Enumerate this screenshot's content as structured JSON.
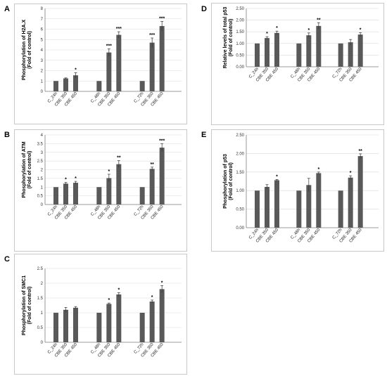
{
  "colors": {
    "bar": "#595959",
    "grid": "#d9d9d9",
    "axis": "#808080",
    "frame": "#c8c8c8"
  },
  "chart_data": [
    {
      "panel": "A",
      "type": "bar",
      "ylabel": "Phosphorylation of H2A.X",
      "ylabel2": "(Fold of control)",
      "ylim": [
        0,
        8
      ],
      "ticks": [
        "0",
        "1",
        "2",
        "3",
        "4",
        "5",
        "6",
        "7",
        "8"
      ],
      "tick_values": [
        0,
        1,
        2,
        3,
        4,
        5,
        6,
        7,
        8
      ],
      "grid": true,
      "categories": [
        "C_24h",
        "CBE 350",
        "CBE 450",
        "C_48h",
        "CBE 350",
        "CBE 450",
        "C_72h",
        "CBE 350",
        "CBE 450"
      ],
      "values": [
        1.0,
        1.25,
        1.55,
        1.0,
        3.75,
        5.45,
        1.0,
        4.7,
        6.3
      ],
      "errors": [
        0,
        0.05,
        0.25,
        0,
        0.35,
        0.3,
        0,
        0.45,
        0.45
      ],
      "significance": [
        "",
        "",
        "*",
        "",
        "***",
        "***",
        "",
        "***",
        "***"
      ]
    },
    {
      "panel": "B",
      "type": "bar",
      "ylabel": "Phosphorylation of ATM",
      "ylabel2": "(Fold of control)",
      "ylim": [
        0,
        4
      ],
      "ticks": [
        "0",
        "0.5",
        "1",
        "1.5",
        "2",
        "2.5",
        "3",
        "3.5",
        "4"
      ],
      "tick_values": [
        0,
        0.5,
        1,
        1.5,
        2,
        2.5,
        3,
        3.5,
        4
      ],
      "grid": true,
      "categories": [
        "C_24h",
        "CBE 350",
        "CBE 450",
        "C_48h",
        "CBE 350",
        "CBE 450",
        "C_72h",
        "CBE 350",
        "CBE 450"
      ],
      "values": [
        1.0,
        1.2,
        1.25,
        1.0,
        1.52,
        2.32,
        1.0,
        2.05,
        3.27
      ],
      "errors": [
        0,
        0.07,
        0.08,
        0,
        0.22,
        0.2,
        0,
        0.1,
        0.22
      ],
      "significance": [
        "",
        "*",
        "*",
        "",
        "*",
        "**",
        "",
        "**",
        "***"
      ]
    },
    {
      "panel": "C",
      "type": "bar",
      "ylabel": "Phosphorylation of SMC1",
      "ylabel2": "(Fold of control)",
      "ylim": [
        0,
        2.5
      ],
      "ticks": [
        "0",
        "0.5",
        "1",
        "1.5",
        "2",
        "2.5"
      ],
      "tick_values": [
        0,
        0.5,
        1,
        1.5,
        2,
        2.5
      ],
      "grid": true,
      "categories": [
        "C_24h",
        "CBE 350",
        "CBE 450",
        "C_48h",
        "CBE 350",
        "CBE 450",
        "C_72h",
        "CBE 350",
        "CBE 450"
      ],
      "values": [
        1.0,
        1.1,
        1.17,
        1.0,
        1.3,
        1.62,
        1.0,
        1.38,
        1.8
      ],
      "errors": [
        0,
        0.08,
        0.04,
        0,
        0.03,
        0.06,
        0,
        0.05,
        0.12
      ],
      "significance": [
        "",
        "",
        "",
        "",
        "*",
        "*",
        "",
        "*",
        "*"
      ]
    },
    {
      "panel": "D",
      "type": "bar",
      "ylabel": "Relative levels of  total p53",
      "ylabel2": "(Fold of control)",
      "ylim": [
        0,
        2.5
      ],
      "ticks": [
        "0.00",
        "0.50",
        "1.00",
        "1.50",
        "2.00",
        "2.50"
      ],
      "tick_values": [
        0,
        0.5,
        1,
        1.5,
        2,
        2.5
      ],
      "grid": true,
      "categories": [
        "C_24h",
        "CBE 350",
        "CBE 450",
        "C_48h",
        "CBE 350",
        "CBE 450",
        "C_72h",
        "CBE 350",
        "CBE 450"
      ],
      "values": [
        1.0,
        1.23,
        1.45,
        1.0,
        1.35,
        1.75,
        1.0,
        1.05,
        1.38
      ],
      "errors": [
        0,
        0.06,
        0.08,
        0,
        0.1,
        0.14,
        0,
        0.12,
        0.08
      ],
      "significance": [
        "",
        "*",
        "*",
        "",
        "*",
        "**",
        "",
        "",
        "*"
      ]
    },
    {
      "panel": "E",
      "type": "bar",
      "ylabel": "Phosphorylation of p53",
      "ylabel2": "(Fold of control)",
      "ylim": [
        0,
        2.5
      ],
      "ticks": [
        "0.00",
        "0.50",
        "1.00",
        "1.50",
        "2.00",
        "2.50"
      ],
      "tick_values": [
        0,
        0.5,
        1,
        1.5,
        2,
        2.5
      ],
      "grid": true,
      "categories": [
        "C_24h",
        "CBE 350",
        "CBE 450",
        "C_48h",
        "CBE 350",
        "CBE 450",
        "C_72h",
        "CBE 350",
        "CBE 450"
      ],
      "values": [
        1.0,
        1.1,
        1.28,
        1.0,
        1.15,
        1.47,
        1.0,
        1.35,
        1.93
      ],
      "errors": [
        0,
        0.06,
        0.02,
        0,
        0.18,
        0.03,
        0,
        0.05,
        0.06
      ],
      "significance": [
        "",
        "",
        "*",
        "",
        "",
        "*",
        "",
        "*",
        "**"
      ]
    }
  ]
}
